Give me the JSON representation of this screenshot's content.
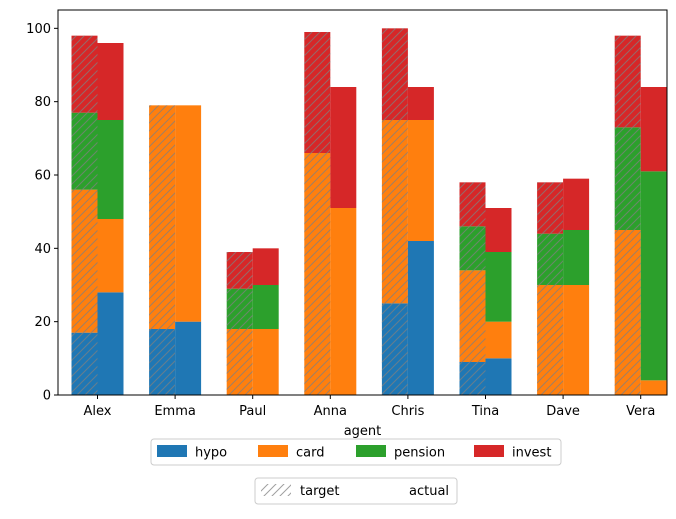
{
  "chart_data": {
    "type": "bar",
    "stacked": true,
    "grouped_by": [
      "target",
      "actual"
    ],
    "xlabel": "agent",
    "ylabel": "",
    "ylim": [
      0,
      105
    ],
    "yticks": [
      0,
      20,
      40,
      60,
      80,
      100
    ],
    "grid": false,
    "categories": [
      "Alex",
      "Emma",
      "Paul",
      "Anna",
      "Chris",
      "Tina",
      "Dave",
      "Vera"
    ],
    "series": [
      {
        "name": "hypo",
        "color": "#1f77b4",
        "target": [
          17,
          18,
          0,
          0,
          25,
          9,
          0,
          0
        ],
        "actual": [
          28,
          20,
          0,
          0,
          42,
          10,
          0,
          0
        ]
      },
      {
        "name": "card",
        "color": "#ff7f0e",
        "target": [
          39,
          61,
          18,
          66,
          50,
          25,
          30,
          45
        ],
        "actual": [
          20,
          59,
          18,
          51,
          33,
          10,
          30,
          4
        ]
      },
      {
        "name": "pension",
        "color": "#2ca02c",
        "target": [
          21,
          0,
          11,
          0,
          0,
          12,
          14,
          28
        ],
        "actual": [
          27,
          0,
          12,
          0,
          0,
          19,
          15,
          57
        ]
      },
      {
        "name": "invest",
        "color": "#d62728",
        "target": [
          21,
          0,
          10,
          33,
          25,
          12,
          14,
          25
        ],
        "actual": [
          21,
          0,
          10,
          33,
          9,
          12,
          14,
          23
        ]
      }
    ],
    "legend_series": {
      "placement": "below-center",
      "labels": [
        "hypo",
        "card",
        "pension",
        "invest"
      ]
    },
    "legend_groups": {
      "placement": "below-center",
      "labels": [
        "target",
        "actual"
      ],
      "target_pattern": "hatched"
    }
  }
}
